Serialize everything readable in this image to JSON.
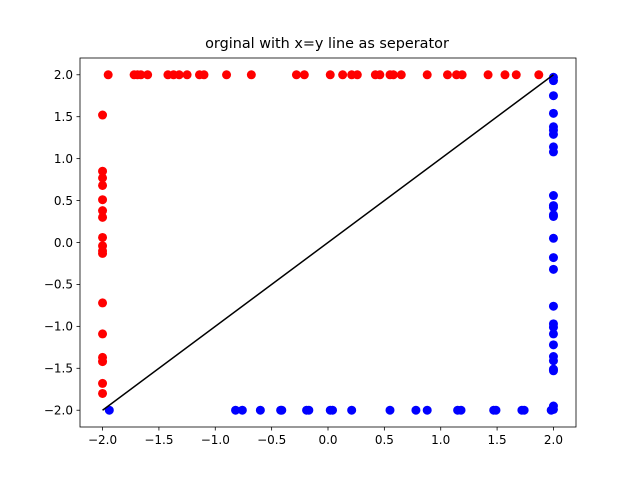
{
  "chart_data": {
    "type": "scatter",
    "title": "orginal with x=y line as seperator",
    "xlabel": "",
    "ylabel": "",
    "xlim": [
      -2.2,
      2.2
    ],
    "ylim": [
      -2.2,
      2.2
    ],
    "xticks": [
      -2.0,
      -1.5,
      -1.0,
      -0.5,
      0.0,
      0.5,
      1.0,
      1.5,
      2.0
    ],
    "yticks": [
      -2.0,
      -1.5,
      -1.0,
      -0.5,
      0.0,
      0.5,
      1.0,
      1.5,
      2.0
    ],
    "xtick_labels": [
      "−2.0",
      "−1.5",
      "−1.0",
      "−0.5",
      "0.0",
      "0.5",
      "1.0",
      "1.5",
      "2.0"
    ],
    "ytick_labels": [
      "−2.0",
      "−1.5",
      "−1.0",
      "−0.5",
      "0.0",
      "0.5",
      "1.0",
      "1.5",
      "2.0"
    ],
    "grid": false,
    "legend": false,
    "series": [
      {
        "color": "#ff0000",
        "points": [
          [
            -1.95,
            2.0
          ],
          [
            -1.72,
            2.0
          ],
          [
            -1.69,
            2.0
          ],
          [
            -1.66,
            2.0
          ],
          [
            -1.6,
            2.0
          ],
          [
            -1.42,
            2.0
          ],
          [
            -1.37,
            2.0
          ],
          [
            -1.32,
            2.0
          ],
          [
            -1.25,
            2.0
          ],
          [
            -1.14,
            2.0
          ],
          [
            -1.1,
            2.0
          ],
          [
            -0.9,
            2.0
          ],
          [
            -0.68,
            2.0
          ],
          [
            -0.28,
            2.0
          ],
          [
            -0.21,
            2.0
          ],
          [
            0.02,
            2.0
          ],
          [
            0.13,
            2.0
          ],
          [
            0.21,
            2.0
          ],
          [
            0.26,
            2.0
          ],
          [
            0.42,
            2.0
          ],
          [
            0.46,
            2.0
          ],
          [
            0.55,
            2.0
          ],
          [
            0.58,
            2.0
          ],
          [
            0.65,
            2.0
          ],
          [
            0.88,
            2.0
          ],
          [
            1.06,
            2.0
          ],
          [
            1.14,
            2.0
          ],
          [
            1.19,
            2.0
          ],
          [
            1.42,
            2.0
          ],
          [
            1.57,
            2.0
          ],
          [
            1.67,
            2.0
          ],
          [
            1.87,
            2.0
          ],
          [
            -2.0,
            1.52
          ],
          [
            -2.0,
            0.85
          ],
          [
            -2.0,
            0.77
          ],
          [
            -2.0,
            0.68
          ],
          [
            -2.0,
            0.51
          ],
          [
            -2.0,
            0.38
          ],
          [
            -2.0,
            0.3
          ],
          [
            -2.0,
            0.06
          ],
          [
            -2.0,
            -0.04
          ],
          [
            -2.0,
            -0.1
          ],
          [
            -2.0,
            -0.13
          ],
          [
            -2.0,
            -0.72
          ],
          [
            -2.0,
            -1.09
          ],
          [
            -2.0,
            -1.37
          ],
          [
            -2.0,
            -1.42
          ],
          [
            -2.0,
            -1.68
          ],
          [
            -2.0,
            -1.8
          ]
        ]
      },
      {
        "color": "#0000ff",
        "points": [
          [
            2.0,
            1.97
          ],
          [
            2.0,
            1.93
          ],
          [
            2.0,
            1.75
          ],
          [
            2.0,
            1.54
          ],
          [
            2.0,
            1.38
          ],
          [
            2.0,
            1.34
          ],
          [
            2.0,
            1.29
          ],
          [
            2.0,
            1.14
          ],
          [
            2.0,
            1.08
          ],
          [
            2.0,
            0.56
          ],
          [
            2.0,
            0.44
          ],
          [
            2.0,
            0.42
          ],
          [
            2.0,
            0.33
          ],
          [
            2.0,
            0.31
          ],
          [
            2.0,
            0.05
          ],
          [
            2.0,
            -0.18
          ],
          [
            2.0,
            -0.32
          ],
          [
            2.0,
            -0.76
          ],
          [
            2.0,
            -0.97
          ],
          [
            2.0,
            -1.01
          ],
          [
            2.0,
            -1.09
          ],
          [
            2.0,
            -1.22
          ],
          [
            2.0,
            -1.36
          ],
          [
            2.0,
            -1.41
          ],
          [
            2.0,
            -1.51
          ],
          [
            2.0,
            -1.53
          ],
          [
            2.0,
            -1.95
          ],
          [
            2.0,
            -1.99
          ],
          [
            -1.94,
            -2.0
          ],
          [
            -0.82,
            -2.0
          ],
          [
            -0.76,
            -2.0
          ],
          [
            -0.6,
            -2.0
          ],
          [
            -0.42,
            -2.0
          ],
          [
            -0.41,
            -2.0
          ],
          [
            -0.19,
            -2.0
          ],
          [
            -0.17,
            -2.0
          ],
          [
            0.02,
            -2.0
          ],
          [
            0.04,
            -2.0
          ],
          [
            0.21,
            -2.0
          ],
          [
            0.55,
            -2.0
          ],
          [
            0.78,
            -2.0
          ],
          [
            0.88,
            -2.0
          ],
          [
            1.15,
            -2.0
          ],
          [
            1.18,
            -2.0
          ],
          [
            1.47,
            -2.0
          ],
          [
            1.49,
            -2.0
          ],
          [
            1.72,
            -2.0
          ],
          [
            1.74,
            -2.0
          ],
          [
            1.98,
            -2.0
          ]
        ]
      }
    ],
    "separator_line": {
      "color": "#000000",
      "from": [
        -2.0,
        -2.0
      ],
      "to": [
        2.0,
        2.0
      ]
    }
  }
}
